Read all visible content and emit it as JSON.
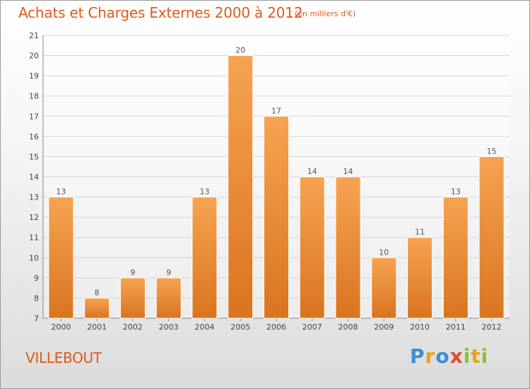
{
  "header": {
    "title": "Achats et Charges Externes 2000 à 2012",
    "unit": "(en milliers d'€)"
  },
  "footer": {
    "place": "VILLEBOUT",
    "logo": "Proxiti"
  },
  "colors": {
    "bar_top": "#f6a352",
    "bar_bottom": "#d9741f",
    "text_accent": "#e05a1a"
  },
  "chart_data": {
    "type": "bar",
    "title": "Achats et Charges Externes 2000 à 2012",
    "categories": [
      "2000",
      "2001",
      "2002",
      "2003",
      "2004",
      "2005",
      "2006",
      "2007",
      "2008",
      "2009",
      "2010",
      "2011",
      "2012"
    ],
    "values": [
      13,
      8,
      9,
      9,
      13,
      20,
      17,
      14,
      14,
      10,
      11,
      13,
      15
    ],
    "ylim": [
      7,
      21
    ],
    "yticks": [
      7,
      8,
      9,
      10,
      11,
      12,
      13,
      14,
      15,
      16,
      17,
      18,
      19,
      20,
      21
    ],
    "grid": true,
    "data_labels": true
  }
}
